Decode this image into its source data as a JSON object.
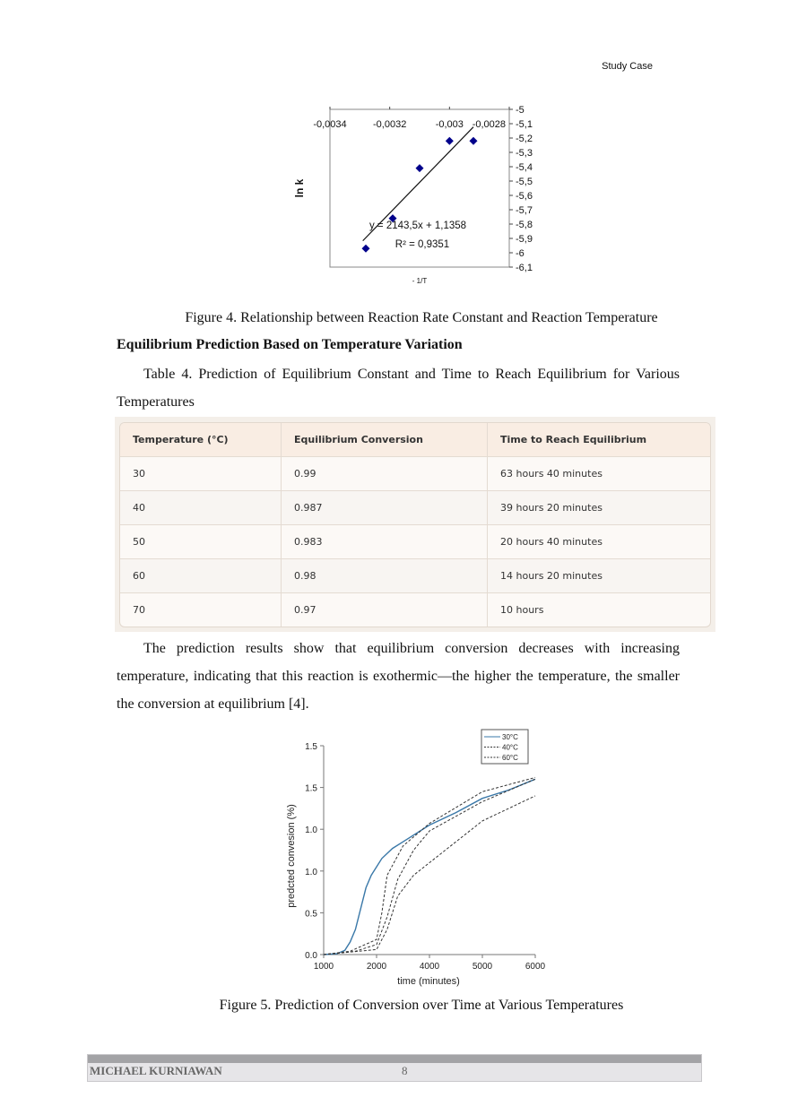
{
  "header": {
    "running_title": "Study Case"
  },
  "figure4": {
    "caption": "Figure 4. Relationship between Reaction Rate Constant and Reaction Temperature"
  },
  "section_heading": "Equilibrium Prediction Based on Temperature Variation",
  "table4": {
    "caption": "Table 4. Prediction of Equilibrium Constant and Time to Reach Equilibrium for Various Temperatures",
    "headers": [
      "Temperature (°C)",
      "Equilibrium Conversion",
      "Time to Reach Equilibrium"
    ],
    "rows": [
      [
        "30",
        "0.99",
        "63 hours 40 minutes"
      ],
      [
        "40",
        "0.987",
        "39 hours 20 minutes"
      ],
      [
        "50",
        "0.983",
        "20 hours 40 minutes"
      ],
      [
        "60",
        "0.98",
        "14 hours 20 minutes"
      ],
      [
        "70",
        "0.97",
        "10 hours"
      ]
    ]
  },
  "body_paragraph": "The prediction results show that equilibrium conversion decreases with increasing temperature, indicating that this reaction is exothermic—the higher the temperature, the smaller the conversion at equilibrium [4].",
  "figure5": {
    "caption": "Figure 5. Prediction of Conversion over Time at Various Temperatures"
  },
  "footer": {
    "author": "MICHAEL KURNIAWAN",
    "page_number": "8"
  },
  "chart_data": [
    {
      "type": "scatter",
      "xlabel": "- 1/T",
      "ylabel": "ln k",
      "xlim": [
        -0.0034,
        -0.0028
      ],
      "ylim": [
        -6.1,
        -5
      ],
      "x_ticks": [
        "-0,0034",
        "-0,0032",
        "-0,003",
        "-0,0028"
      ],
      "x_tick_values": [
        -0.0034,
        -0.0032,
        -0.003,
        -0.0028
      ],
      "y_ticks": [
        "-5",
        "-5,1",
        "-5,2",
        "-5,3",
        "-5,4",
        "-5,5",
        "-5,6",
        "-5,7",
        "-5,8",
        "-5,9",
        "-6",
        "-6,1"
      ],
      "y_tick_values": [
        -5,
        -5.1,
        -5.2,
        -5.3,
        -5.4,
        -5.5,
        -5.6,
        -5.7,
        -5.8,
        -5.9,
        -6,
        -6.1
      ],
      "points": [
        [
          -0.00328,
          -5.97
        ],
        [
          -0.00319,
          -5.76
        ],
        [
          -0.0031,
          -5.41
        ],
        [
          -0.003,
          -5.22
        ],
        [
          -0.00292,
          -5.22
        ]
      ],
      "marker_color": "#00008b",
      "trendline": {
        "slope": 2143.5,
        "intercept": 1.1358,
        "x_range": [
          -0.00329,
          -0.00292
        ]
      },
      "annotations": [
        "y = 2143,5x + 1,1358",
        "R² = 0,9351"
      ],
      "grid": false
    },
    {
      "type": "line",
      "xlabel": "time (minutes)",
      "ylabel": "predcted convesion (%)",
      "x_ticks": [
        "1000",
        "2000",
        "4000",
        "5000",
        "6000"
      ],
      "y_ticks": [
        "0.0",
        "0.5",
        "1.0",
        "1.0",
        "1.5",
        "1.5"
      ],
      "legend_position": "top-right",
      "grid": false,
      "series": [
        {
          "name": "30°C",
          "style": "solid",
          "color": "#3a78a8",
          "points": [
            [
              1000,
              0
            ],
            [
              1250,
              0.01
            ],
            [
              1400,
              0.05
            ],
            [
              1500,
              0.15
            ],
            [
              1600,
              0.3
            ],
            [
              1700,
              0.55
            ],
            [
              1800,
              0.8
            ],
            [
              1900,
              0.95
            ],
            [
              2000,
              1.05
            ],
            [
              2200,
              1.15
            ],
            [
              2600,
              1.27
            ],
            [
              3000,
              1.35
            ],
            [
              4000,
              1.55
            ],
            [
              4500,
              1.7
            ],
            [
              5000,
              1.87
            ],
            [
              5500,
              1.97
            ],
            [
              6000,
              2.1
            ]
          ]
        },
        {
          "name": "40°C",
          "style": "dashed",
          "color": "#333333",
          "points": [
            [
              1000,
              0
            ],
            [
              1500,
              0.04
            ],
            [
              2000,
              0.18
            ],
            [
              2200,
              0.5
            ],
            [
              2400,
              0.95
            ],
            [
              3000,
              1.3
            ],
            [
              4000,
              1.57
            ],
            [
              5000,
              1.95
            ],
            [
              6000,
              2.12
            ]
          ]
        },
        {
          "name": "60°C",
          "style": "dashed",
          "color": "#333333",
          "points": [
            [
              1000,
              0
            ],
            [
              1600,
              0.04
            ],
            [
              2000,
              0.12
            ],
            [
              2400,
              0.45
            ],
            [
              2800,
              0.9
            ],
            [
              3400,
              1.25
            ],
            [
              4000,
              1.48
            ],
            [
              5000,
              1.83
            ],
            [
              6000,
              2.1
            ]
          ]
        },
        {
          "style": "dashed",
          "color": "#333333",
          "points": [
            [
              1000,
              0
            ],
            [
              2000,
              0.06
            ],
            [
              2400,
              0.3
            ],
            [
              2800,
              0.7
            ],
            [
              3400,
              0.95
            ],
            [
              4000,
              1.1
            ],
            [
              5000,
              1.6
            ],
            [
              6000,
              1.9
            ]
          ]
        }
      ]
    }
  ]
}
